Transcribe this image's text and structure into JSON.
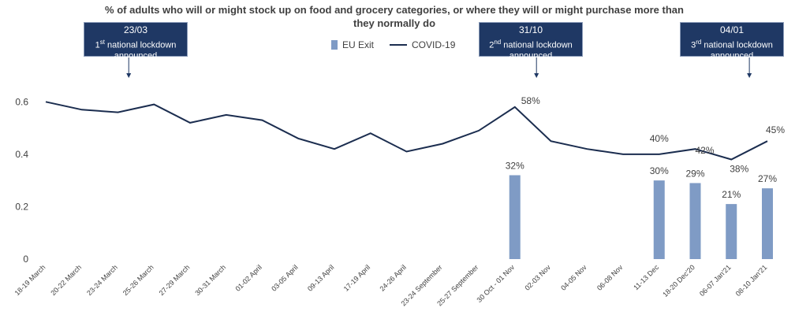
{
  "chart_data": {
    "type": "bar+line",
    "title": "% of adults who will or might stock up on food and grocery categories, or where they will or might purchase more than they normally do",
    "categories": [
      "18-19 March",
      "20-22 March",
      "23-24 March",
      "25-26 March",
      "27-29 March",
      "30-31 March",
      "01-02 April",
      "03-05 April",
      "09-13 April",
      "17-19 April",
      "24-26 April",
      "23-24 September",
      "25-27 September",
      "30 Oct - 01 Nov",
      "02-03 Nov",
      "04-05 Nov",
      "06-08 Nov",
      "11-13 Dec",
      "18-20 Dec'20",
      "06-07 Jan'21",
      "08-10 Jan'21"
    ],
    "yticks": [
      "0",
      "0.2",
      "0.4",
      "0.6"
    ],
    "ylim": [
      0,
      0.7
    ],
    "legend_position": "top",
    "series": [
      {
        "name": "EU Exit",
        "type": "bar",
        "color": "#7f9bc5",
        "values": [
          null,
          null,
          null,
          null,
          null,
          null,
          null,
          null,
          null,
          null,
          null,
          null,
          null,
          0.32,
          null,
          null,
          null,
          0.3,
          0.29,
          0.21,
          0.27
        ],
        "labels": [
          null,
          null,
          null,
          null,
          null,
          null,
          null,
          null,
          null,
          null,
          null,
          null,
          null,
          "32%",
          null,
          null,
          null,
          "30%",
          "29%",
          "21%",
          "27%"
        ]
      },
      {
        "name": "COVID-19",
        "type": "line",
        "color": "#1b2d4f",
        "values": [
          0.6,
          0.57,
          0.56,
          0.59,
          0.52,
          0.55,
          0.53,
          0.46,
          0.42,
          0.48,
          0.41,
          0.44,
          0.49,
          0.58,
          0.45,
          0.42,
          0.4,
          0.4,
          0.42,
          0.38,
          0.45
        ],
        "labels": [
          null,
          null,
          null,
          null,
          null,
          null,
          null,
          null,
          null,
          null,
          null,
          null,
          null,
          "58%",
          null,
          null,
          null,
          "40%",
          "42%",
          "38%",
          "45%"
        ]
      }
    ],
    "annotations": [
      {
        "date": "23/03",
        "ordinal": "1",
        "suffix": "st",
        "text": " national lockdown",
        "text2": "announced",
        "category_index": 2.3
      },
      {
        "date": "31/10",
        "ordinal": "2",
        "suffix": "nd",
        "text": " national lockdown",
        "text2": "announced",
        "category_index": 13.6
      },
      {
        "date": "04/01",
        "ordinal": "3",
        "suffix": "rd",
        "text": "  national lockdown",
        "text2": "announced",
        "category_index": 19.5
      }
    ]
  }
}
